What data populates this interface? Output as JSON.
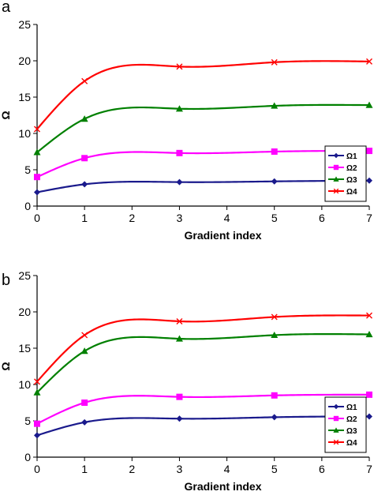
{
  "chart_data": [
    {
      "type": "line",
      "panel": "a",
      "xlabel": "Gradient index",
      "ylabel": "Ω",
      "xlim": [
        0,
        7
      ],
      "ylim": [
        0,
        25
      ],
      "xticks": [
        0,
        1,
        2,
        3,
        4,
        5,
        6,
        7
      ],
      "yticks": [
        0,
        5,
        10,
        15,
        20,
        25
      ],
      "grid": false,
      "legend_position": "lower-right",
      "series": [
        {
          "name": "Ω1",
          "color": "#1a1a8c",
          "marker": "diamond",
          "x": [
            0,
            1,
            3,
            5,
            7
          ],
          "values": [
            1.9,
            3.0,
            3.3,
            3.4,
            3.5
          ]
        },
        {
          "name": "Ω2",
          "color": "#ff00ff",
          "marker": "square",
          "x": [
            0,
            1,
            3,
            5,
            7
          ],
          "values": [
            4.0,
            6.6,
            7.3,
            7.5,
            7.6
          ]
        },
        {
          "name": "Ω3",
          "color": "#008000",
          "marker": "triangle",
          "x": [
            0,
            1,
            3,
            5,
            7
          ],
          "values": [
            7.4,
            12.0,
            13.4,
            13.8,
            13.9
          ]
        },
        {
          "name": "Ω4",
          "color": "#ff0000",
          "marker": "x",
          "x": [
            0,
            1,
            3,
            5,
            7
          ],
          "values": [
            10.6,
            17.2,
            19.2,
            19.8,
            19.9
          ]
        }
      ]
    },
    {
      "type": "line",
      "panel": "b",
      "xlabel": "Gradient index",
      "ylabel": "Ω",
      "xlim": [
        0,
        7
      ],
      "ylim": [
        0,
        25
      ],
      "xticks": [
        0,
        1,
        2,
        3,
        4,
        5,
        6,
        7
      ],
      "yticks": [
        0,
        5,
        10,
        15,
        20,
        25
      ],
      "grid": false,
      "legend_position": "lower-right",
      "series": [
        {
          "name": "Ω1",
          "color": "#1a1a8c",
          "marker": "diamond",
          "x": [
            0,
            1,
            3,
            5,
            7
          ],
          "values": [
            3.0,
            4.8,
            5.3,
            5.5,
            5.6
          ]
        },
        {
          "name": "Ω2",
          "color": "#ff00ff",
          "marker": "square",
          "x": [
            0,
            1,
            3,
            5,
            7
          ],
          "values": [
            4.6,
            7.5,
            8.3,
            8.5,
            8.6
          ]
        },
        {
          "name": "Ω3",
          "color": "#008000",
          "marker": "triangle",
          "x": [
            0,
            1,
            3,
            5,
            7
          ],
          "values": [
            8.9,
            14.6,
            16.3,
            16.8,
            16.9
          ]
        },
        {
          "name": "Ω4",
          "color": "#ff0000",
          "marker": "x",
          "x": [
            0,
            1,
            3,
            5,
            7
          ],
          "values": [
            10.4,
            16.8,
            18.7,
            19.3,
            19.5
          ]
        }
      ]
    }
  ]
}
